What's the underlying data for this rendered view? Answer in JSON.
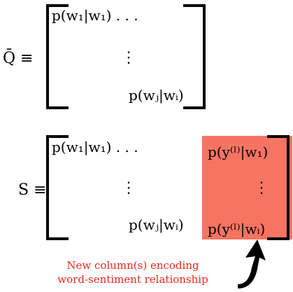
{
  "colors": {
    "highlight": "#f87462",
    "caption_text": "#e8281d",
    "ink": "#000000"
  },
  "matrix_q": {
    "lhs": "Q̄ ≡",
    "row_top": "p(w₁|w₁) . . .",
    "vdots": "⋮",
    "row_bottom": "p(wⱼ|wᵢ)"
  },
  "matrix_s": {
    "lhs": "S ≡",
    "row_top": "p(w₁|w₁) . . .",
    "vdots": "⋮",
    "row_bottom": "p(wⱼ|wᵢ)",
    "new_col_top": "p(y⁽ˡ⁾|w₁)",
    "new_col_vdots": "⋮",
    "new_col_bottom": "p(y⁽ˡ⁾|wᵢ)"
  },
  "caption": {
    "line1": "New column(s) encoding",
    "line2": "word-sentiment relationship"
  },
  "icons": {
    "arrow": "curved-arrow-icon"
  }
}
